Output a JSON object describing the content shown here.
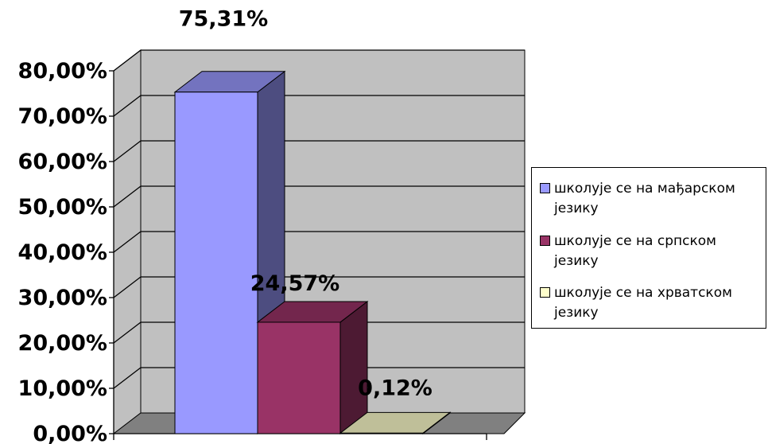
{
  "chart_data": {
    "type": "bar",
    "three_d": true,
    "categories": [
      ""
    ],
    "series": [
      {
        "name": "школује се на мађарском језику",
        "values": [
          75.31
        ],
        "label": "75,31%",
        "color": "#9999ff"
      },
      {
        "name": "школује се на српском језику",
        "values": [
          24.57
        ],
        "label": "24,57%",
        "color": "#993366"
      },
      {
        "name": "школује се на хрватском језику",
        "values": [
          0.12
        ],
        "label": "0,12%",
        "color": "#ffffcc"
      }
    ],
    "ylim": [
      0,
      80
    ],
    "yticks": [
      "0,00%",
      "10,00%",
      "20,00%",
      "30,00%",
      "40,00%",
      "50,00%",
      "60,00%",
      "70,00%",
      "80,00%"
    ],
    "grid": true,
    "wall_color": "#c0c0c0",
    "floor_color": "#808080",
    "legend_position": "right"
  }
}
